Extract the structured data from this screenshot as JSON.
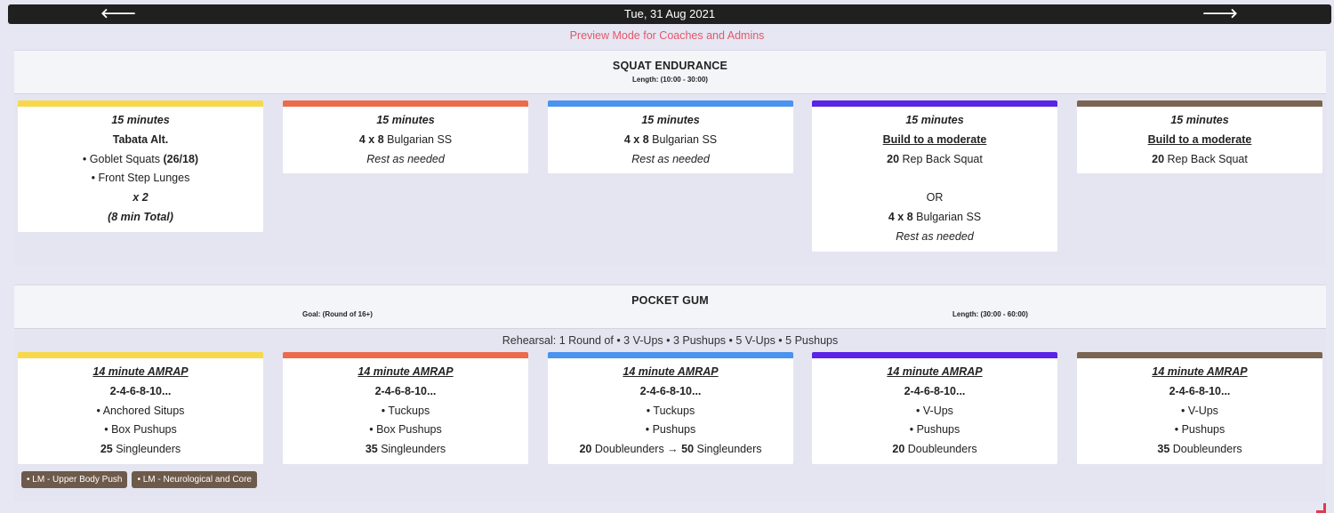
{
  "header": {
    "date": "Tue, 31 Aug 2021",
    "prev_arrow": "🡐",
    "next_arrow": "🡒"
  },
  "preview_mode": "Preview Mode for Coaches and Admins",
  "colors": {
    "yellow": "#f7d84a",
    "orange": "#ec6b4d",
    "blue": "#4a93ef",
    "purple": "#5a23e6",
    "brown": "#7b6552"
  },
  "section1": {
    "title": "SQUAT ENDURANCE",
    "length": "Length: (10:00 - 30:00)",
    "cards": [
      {
        "lines": [
          {
            "parts": [
              {
                "t": "15 minutes",
                "s": "bi"
              }
            ]
          },
          {
            "parts": [
              {
                "t": "Tabata Alt.",
                "s": "b"
              }
            ]
          },
          {
            "parts": [
              {
                "t": "• Goblet Squats ",
                "s": ""
              },
              {
                "t": "(26/18)",
                "s": "b"
              }
            ]
          },
          {
            "parts": [
              {
                "t": "• Front Step Lunges",
                "s": ""
              }
            ]
          },
          {
            "parts": [
              {
                "t": "x 2",
                "s": "bi"
              }
            ]
          },
          {
            "parts": [
              {
                "t": "(8 min Total)",
                "s": "bi"
              }
            ]
          }
        ]
      },
      {
        "lines": [
          {
            "parts": [
              {
                "t": "15 minutes",
                "s": "bi"
              }
            ]
          },
          {
            "parts": [
              {
                "t": "4 x 8",
                "s": "b"
              },
              {
                "t": " Bulgarian SS",
                "s": ""
              }
            ]
          },
          {
            "parts": [
              {
                "t": "Rest as needed",
                "s": "i"
              }
            ]
          }
        ]
      },
      {
        "lines": [
          {
            "parts": [
              {
                "t": "15 minutes",
                "s": "bi"
              }
            ]
          },
          {
            "parts": [
              {
                "t": "4 x 8",
                "s": "b"
              },
              {
                "t": " Bulgarian SS",
                "s": ""
              }
            ]
          },
          {
            "parts": [
              {
                "t": "Rest as needed",
                "s": "i"
              }
            ]
          }
        ]
      },
      {
        "lines": [
          {
            "parts": [
              {
                "t": "15 minutes",
                "s": "bi"
              }
            ]
          },
          {
            "parts": [
              {
                "t": "Build to a moderate",
                "s": "bu"
              }
            ]
          },
          {
            "parts": [
              {
                "t": "20",
                "s": "b"
              },
              {
                "t": " Rep Back Squat",
                "s": ""
              }
            ]
          },
          {
            "parts": [
              {
                "t": "",
                "s": ""
              }
            ]
          },
          {
            "parts": [
              {
                "t": "OR",
                "s": ""
              }
            ]
          },
          {
            "parts": [
              {
                "t": "4 x 8",
                "s": "b"
              },
              {
                "t": " Bulgarian SS",
                "s": ""
              }
            ]
          },
          {
            "parts": [
              {
                "t": "Rest as needed",
                "s": "i"
              }
            ]
          }
        ]
      },
      {
        "lines": [
          {
            "parts": [
              {
                "t": "15 minutes",
                "s": "bi"
              }
            ]
          },
          {
            "parts": [
              {
                "t": "Build to a moderate",
                "s": "bu"
              }
            ]
          },
          {
            "parts": [
              {
                "t": "20",
                "s": "b"
              },
              {
                "t": " Rep Back Squat",
                "s": ""
              }
            ]
          }
        ]
      }
    ]
  },
  "section2": {
    "title": "POCKET GUM",
    "goal": "Goal: (Round of 16+)",
    "length": "Length: (30:00 - 60:00)",
    "rehearsal": "Rehearsal: 1 Round of • 3 V-Ups • 3 Pushups • 5 V-Ups • 5 Pushups",
    "cards": [
      {
        "lines": [
          {
            "parts": [
              {
                "t": "14 minute AMRAP",
                "s": "biu"
              }
            ]
          },
          {
            "parts": [
              {
                "t": "2-4-6-8-10...",
                "s": "b"
              }
            ]
          },
          {
            "parts": [
              {
                "t": "• Anchored Situps",
                "s": ""
              }
            ]
          },
          {
            "parts": [
              {
                "t": "• Box Pushups",
                "s": ""
              }
            ]
          },
          {
            "parts": [
              {
                "t": "25",
                "s": "b"
              },
              {
                "t": " Singleunders",
                "s": ""
              }
            ]
          }
        ]
      },
      {
        "lines": [
          {
            "parts": [
              {
                "t": "14 minute AMRAP",
                "s": "biu"
              }
            ]
          },
          {
            "parts": [
              {
                "t": "2-4-6-8-10...",
                "s": "b"
              }
            ]
          },
          {
            "parts": [
              {
                "t": "• Tuckups",
                "s": ""
              }
            ]
          },
          {
            "parts": [
              {
                "t": "• Box Pushups",
                "s": ""
              }
            ]
          },
          {
            "parts": [
              {
                "t": "35",
                "s": "b"
              },
              {
                "t": " Singleunders",
                "s": ""
              }
            ]
          }
        ]
      },
      {
        "lines": [
          {
            "parts": [
              {
                "t": "14 minute AMRAP",
                "s": "biu"
              }
            ]
          },
          {
            "parts": [
              {
                "t": "2-4-6-8-10...",
                "s": "b"
              }
            ]
          },
          {
            "parts": [
              {
                "t": "• Tuckups",
                "s": ""
              }
            ]
          },
          {
            "parts": [
              {
                "t": "• Pushups",
                "s": ""
              }
            ]
          },
          {
            "parts": [
              {
                "t": "20",
                "s": "b"
              },
              {
                "t": " Doubleunders ",
                "s": ""
              },
              {
                "t": "→",
                "s": "b"
              },
              {
                "t": " ",
                "s": ""
              },
              {
                "t": "50",
                "s": "b"
              },
              {
                "t": " Singleunders",
                "s": ""
              }
            ]
          }
        ]
      },
      {
        "lines": [
          {
            "parts": [
              {
                "t": "14 minute AMRAP",
                "s": "biu"
              }
            ]
          },
          {
            "parts": [
              {
                "t": "2-4-6-8-10...",
                "s": "b"
              }
            ]
          },
          {
            "parts": [
              {
                "t": "• V-Ups",
                "s": ""
              }
            ]
          },
          {
            "parts": [
              {
                "t": "• Pushups",
                "s": ""
              }
            ]
          },
          {
            "parts": [
              {
                "t": "20",
                "s": "b"
              },
              {
                "t": " Doubleunders",
                "s": ""
              }
            ]
          }
        ]
      },
      {
        "lines": [
          {
            "parts": [
              {
                "t": "14 minute AMRAP",
                "s": "biu"
              }
            ]
          },
          {
            "parts": [
              {
                "t": "2-4-6-8-10...",
                "s": "b"
              }
            ]
          },
          {
            "parts": [
              {
                "t": "• V-Ups",
                "s": ""
              }
            ]
          },
          {
            "parts": [
              {
                "t": "• Pushups",
                "s": ""
              }
            ]
          },
          {
            "parts": [
              {
                "t": "35",
                "s": "b"
              },
              {
                "t": " Doubleunders",
                "s": ""
              }
            ]
          }
        ]
      }
    ],
    "tags": [
      "• LM - Upper Body Push",
      "• LM - Neurological and Core"
    ]
  }
}
